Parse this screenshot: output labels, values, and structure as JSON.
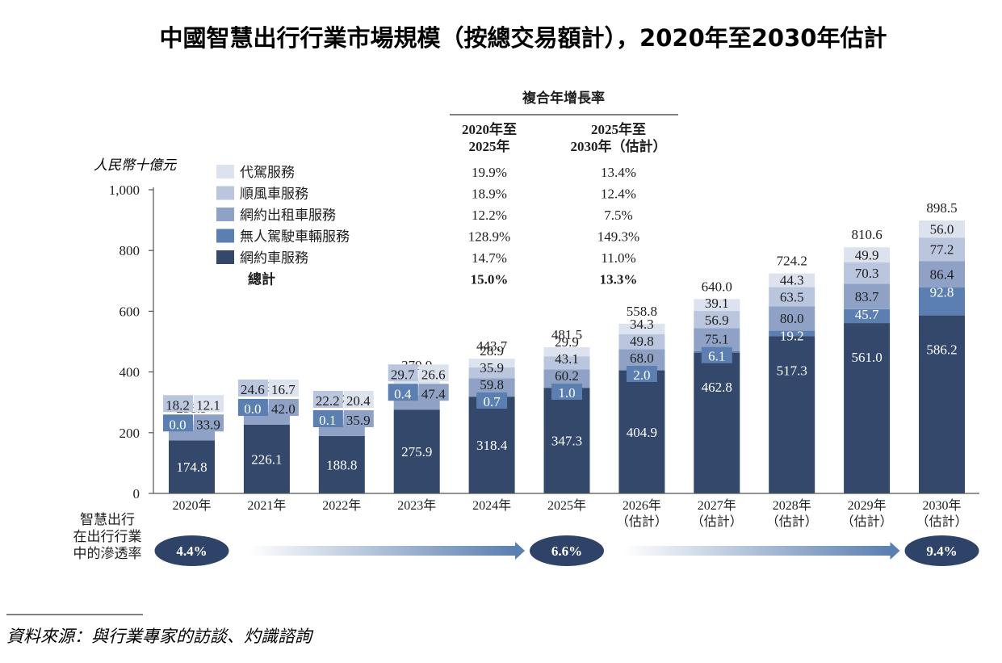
{
  "chart_data": {
    "type": "bar",
    "stacked": true,
    "title": "中國智慧出行行業市場規模（按總交易額計），2020年至2030年估計",
    "ylabel": "人民幣十億元",
    "ylim": [
      0,
      1000
    ],
    "yticks": [
      "0",
      "200",
      "400",
      "600",
      "800",
      "1,000"
    ],
    "ytick_values": [
      0,
      200,
      400,
      600,
      800,
      1000
    ],
    "categories": [
      [
        "2020年"
      ],
      [
        "2021年"
      ],
      [
        "2022年"
      ],
      [
        "2023年"
      ],
      [
        "2024年"
      ],
      [
        "2025年"
      ],
      [
        "2026年",
        "（估計）"
      ],
      [
        "2027年",
        "（估計）"
      ],
      [
        "2028年",
        "（估計）"
      ],
      [
        "2029年",
        "（估計）"
      ],
      [
        "2030年",
        "（估計）"
      ]
    ],
    "totals": [
      "238.9",
      "309.4",
      "267.4",
      "379.9",
      "443.7",
      "481.5",
      "558.8",
      "640.0",
      "724.2",
      "810.6",
      "898.5"
    ],
    "series": [
      {
        "name": "網約車服務",
        "color": "#33486b",
        "label_color": "#ffffff",
        "values": [
          174.8,
          226.1,
          188.8,
          275.9,
          318.4,
          347.3,
          404.9,
          462.8,
          517.3,
          561.0,
          586.2
        ],
        "labels": [
          "174.8",
          "226.1",
          "188.8",
          "275.9",
          "318.4",
          "347.3",
          "404.9",
          "462.8",
          "517.3",
          "561.0",
          "586.2"
        ]
      },
      {
        "name": "無人駕駛車輛服務",
        "color": "#5b7fb0",
        "label_color": "#ffffff",
        "values": [
          0.0,
          0.0,
          0.1,
          0.4,
          0.7,
          1.0,
          2.0,
          6.1,
          19.2,
          45.7,
          92.8
        ],
        "labels": [
          "0.0",
          "0.0",
          "0.1",
          "0.4",
          "0.7",
          "1.0",
          "2.0",
          "6.1",
          "19.2",
          "45.7",
          "92.8"
        ]
      },
      {
        "name": "網約出租車服務",
        "color": "#8fa2c6",
        "label_color": "#1e1e1e",
        "values": [
          33.9,
          42.0,
          35.9,
          47.4,
          59.8,
          60.2,
          68.0,
          75.1,
          80.0,
          83.7,
          86.4
        ],
        "labels": [
          "33.9",
          "42.0",
          "35.9",
          "47.4",
          "59.8",
          "60.2",
          "68.0",
          "75.1",
          "80.0",
          "83.7",
          "86.4"
        ]
      },
      {
        "name": "順風車服務",
        "color": "#bac6de",
        "label_color": "#1e1e1e",
        "values": [
          18.2,
          24.6,
          22.2,
          29.7,
          35.9,
          43.1,
          49.8,
          56.9,
          63.5,
          70.3,
          77.2
        ],
        "labels": [
          "18.2",
          "24.6",
          "22.2",
          "29.7",
          "35.9",
          "43.1",
          "49.8",
          "56.9",
          "63.5",
          "70.3",
          "77.2"
        ]
      },
      {
        "name": "代駕服務",
        "color": "#dde3ee",
        "label_color": "#1e1e1e",
        "values": [
          12.1,
          16.7,
          20.4,
          26.6,
          28.9,
          29.9,
          34.3,
          39.1,
          44.3,
          49.9,
          56.0
        ],
        "labels": [
          "12.1",
          "16.7",
          "20.4",
          "26.6",
          "28.9",
          "29.9",
          "34.3",
          "39.1",
          "44.3",
          "49.9",
          "56.0"
        ]
      }
    ],
    "legend": {
      "placement": "top-left",
      "cagr_header": "複合年增長率",
      "cagr_columns": [
        [
          "2020年至",
          "2025年"
        ],
        [
          "2025年至",
          "2030年（估計）"
        ]
      ],
      "rows": [
        {
          "name": "代駕服務",
          "cagr1": "19.9%",
          "cagr2": "13.4%"
        },
        {
          "name": "順風車服務",
          "cagr1": "18.9%",
          "cagr2": "12.4%"
        },
        {
          "name": "網約出租車服務",
          "cagr1": "12.2%",
          "cagr2": "7.5%"
        },
        {
          "name": "無人駕駛車輛服務",
          "cagr1": "128.9%",
          "cagr2": "149.3%"
        },
        {
          "name": "網約車服務",
          "cagr1": "14.7%",
          "cagr2": "11.0%"
        }
      ],
      "total_row": {
        "name": "總計",
        "cagr1": "15.0%",
        "cagr2": "13.3%"
      }
    },
    "penetration": {
      "label": [
        "智慧出行",
        "在出行行業",
        "中的滲透率"
      ],
      "values": [
        {
          "year": "2020年",
          "value": "4.4%"
        },
        {
          "year": "2025年",
          "value": "6.6%"
        },
        {
          "year": "2030年",
          "value": "9.4%"
        }
      ]
    },
    "source": "資料來源：與行業專家的訪談、灼識諮詢"
  },
  "colors": {
    "dark_navy": "#33486b",
    "oval": "#2f4368",
    "axis": "#555555"
  }
}
